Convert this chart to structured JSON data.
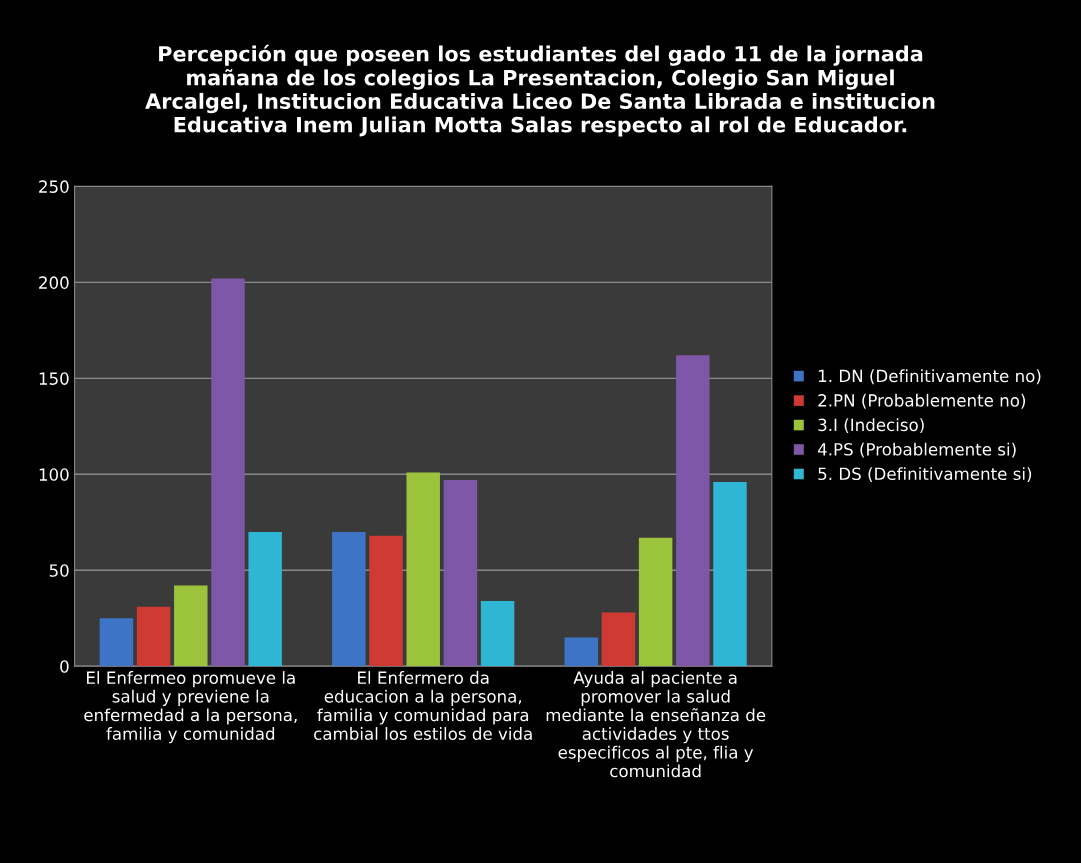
{
  "chart_data": {
    "type": "bar",
    "title": "Percepción que poseen los estudiantes del gado 11 de la jornada\nmañana de los colegios La Presentacion, Colegio San Miguel\nArcalgel, Institucion Educativa Liceo De Santa Librada e institucion\nEducativa Inem Julian Motta Salas respecto al rol de Educador.",
    "categories": [
      "El Enfermeo promueve la\nsalud y previene la\nenfermedad a la persona,\nfamilia y comunidad",
      "El Enfermero da\neducacion a la persona,\nfamilia y comunidad para\ncambial los estilos de vida",
      "Ayuda al paciente a\npromover la salud\nmediante la enseñanza de\nactividades y ttos\nespecificos al pte, flia y\ncomunidad"
    ],
    "series": [
      {
        "name": "1. DN (Definitivamente no)",
        "color": "#3d74c6",
        "values": [
          25,
          70,
          15
        ]
      },
      {
        "name": "2.PN (Probablemente no)",
        "color": "#d03a35",
        "values": [
          31,
          68,
          28
        ]
      },
      {
        "name": "3.I (Indeciso)",
        "color": "#9bc43c",
        "values": [
          42,
          101,
          67
        ]
      },
      {
        "name": "4.PS (Probablemente si)",
        "color": "#7e57a8",
        "values": [
          202,
          97,
          162
        ]
      },
      {
        "name": "5. DS (Definitivamente si)",
        "color": "#2fb6d4",
        "values": [
          70,
          34,
          96
        ]
      }
    ],
    "ylim": [
      0,
      250
    ],
    "yticks": [
      0,
      50,
      100,
      150,
      200,
      250
    ],
    "grid": "y",
    "legend": "right"
  }
}
